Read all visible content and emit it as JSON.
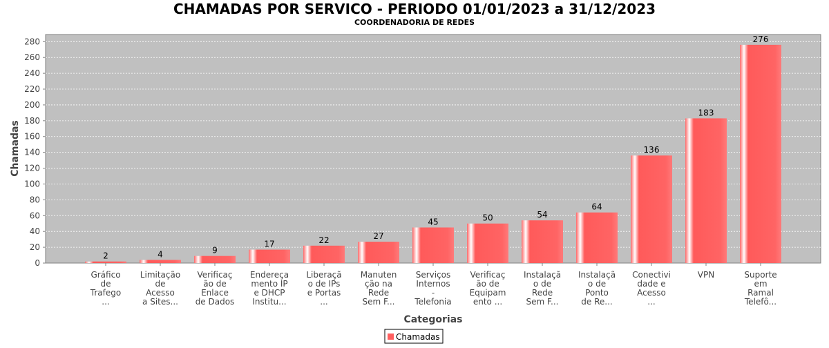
{
  "chart_data": {
    "type": "bar",
    "title": "CHAMADAS POR SERVICO - PERIODO 01/01/2023 a 31/12/2023",
    "subtitle": "COORDENADORIA DE REDES",
    "xlabel": "Categorias",
    "ylabel": "Chamadas",
    "ylim": [
      0,
      289
    ],
    "yticks": [
      0,
      20,
      40,
      60,
      80,
      100,
      120,
      140,
      160,
      180,
      200,
      220,
      240,
      260,
      280
    ],
    "grid": true,
    "legend": {
      "placement": "bottom-center",
      "entries": [
        "Chamadas"
      ]
    },
    "bar_color": "#ff5f5f",
    "categories": [
      [
        "Gráfico",
        "de",
        "Trafego",
        "..."
      ],
      [
        "Limitação",
        "de",
        "Acesso",
        "a Sites..."
      ],
      [
        "Verificaç",
        "ão de",
        "Enlace",
        "de Dados"
      ],
      [
        "Endereça",
        "mento IP",
        "e DHCP",
        "Institu..."
      ],
      [
        "Liberaçã",
        "o de IPs",
        "e Portas",
        "..."
      ],
      [
        "Manuten",
        "ção na",
        "Rede",
        "Sem F..."
      ],
      [
        "Serviços",
        "Internos",
        "-",
        "Telefonia"
      ],
      [
        "Verificaç",
        "ão de",
        "Equipam",
        "ento ..."
      ],
      [
        "Instalaçã",
        "o de",
        "Rede",
        "Sem F..."
      ],
      [
        "Instalaçã",
        "o de",
        "Ponto",
        "de Re..."
      ],
      [
        "Conectivi",
        "dade e",
        "Acesso",
        "..."
      ],
      [
        "VPN"
      ],
      [
        "Suporte",
        "em",
        "Ramal",
        "Telefô..."
      ]
    ],
    "series": [
      {
        "name": "Chamadas",
        "values": [
          2,
          4,
          9,
          17,
          22,
          27,
          45,
          50,
          54,
          64,
          136,
          183,
          276
        ]
      }
    ]
  }
}
